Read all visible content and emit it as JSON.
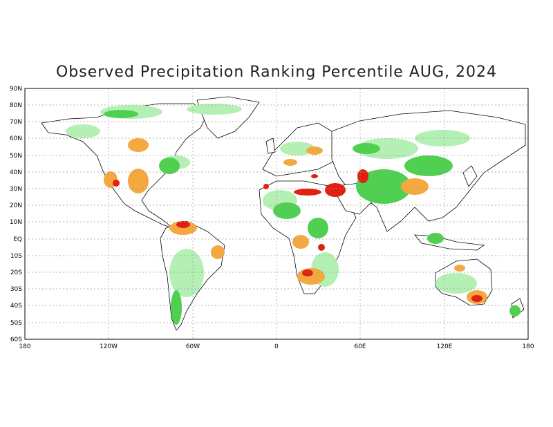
{
  "title": "Observed Precipitation Ranking Percentile AUG, 2024",
  "lat_labels": [
    "90N",
    "80N",
    "70N",
    "60N",
    "50N",
    "40N",
    "30N",
    "20N",
    "10N",
    "EQ",
    "10S",
    "20S",
    "30S",
    "40S",
    "50S",
    "60S"
  ],
  "lon_labels": [
    "180",
    "120W",
    "60W",
    "0",
    "60E",
    "120E",
    "180"
  ],
  "colors": {
    "wet_light": "#b4f0b4",
    "wet_medium": "#50d050",
    "dry_light": "#f4a840",
    "dry_extreme": "#e02010",
    "coastline": "#000000",
    "grid": "#999999"
  }
}
